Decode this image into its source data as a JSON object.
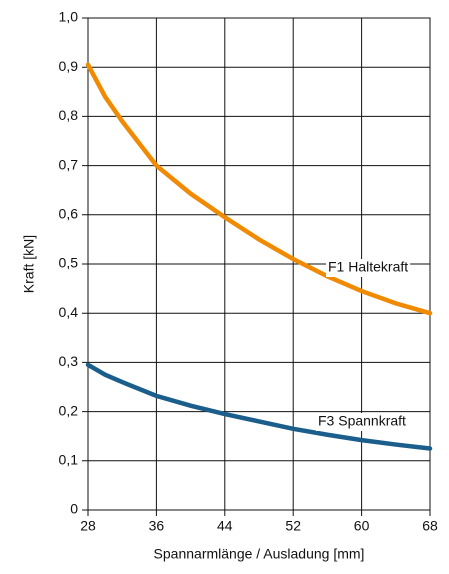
{
  "chart_data": {
    "type": "line",
    "xlabel": "Spannarmlänge / Ausladung [mm]",
    "ylabel": "Kraft [kN]",
    "x": [
      28,
      30,
      32,
      36,
      40,
      44,
      48,
      52,
      56,
      60,
      64,
      68
    ],
    "series": [
      {
        "name": "F1 Haltekraft",
        "color": "#f08a00",
        "values": [
          0.905,
          0.84,
          0.79,
          0.7,
          0.643,
          0.595,
          0.55,
          0.51,
          0.475,
          0.445,
          0.42,
          0.4
        ]
      },
      {
        "name": "F3 Spannkraft",
        "color": "#1b5e8c",
        "values": [
          0.295,
          0.275,
          0.26,
          0.232,
          0.212,
          0.195,
          0.18,
          0.165,
          0.153,
          0.142,
          0.133,
          0.125
        ]
      }
    ],
    "xlim": [
      28,
      68
    ],
    "xticks": [
      28,
      36,
      44,
      52,
      60,
      68
    ],
    "ylim": [
      0,
      1.0
    ],
    "yticks": [
      0,
      {
        "value": 0.1,
        "label": "0,1"
      },
      {
        "value": 0.2,
        "label": "0,2"
      },
      {
        "value": 0.3,
        "label": "0,3"
      },
      {
        "value": 0.4,
        "label": "0,4"
      },
      {
        "value": 0.5,
        "label": "0,5"
      },
      {
        "value": 0.6,
        "label": "0,6"
      },
      {
        "value": 0.7,
        "label": "0,7"
      },
      {
        "value": 0.8,
        "label": "0,8"
      },
      {
        "value": 0.9,
        "label": "0,9"
      },
      {
        "value": 1.0,
        "label": "1,0"
      }
    ],
    "grid": true
  }
}
